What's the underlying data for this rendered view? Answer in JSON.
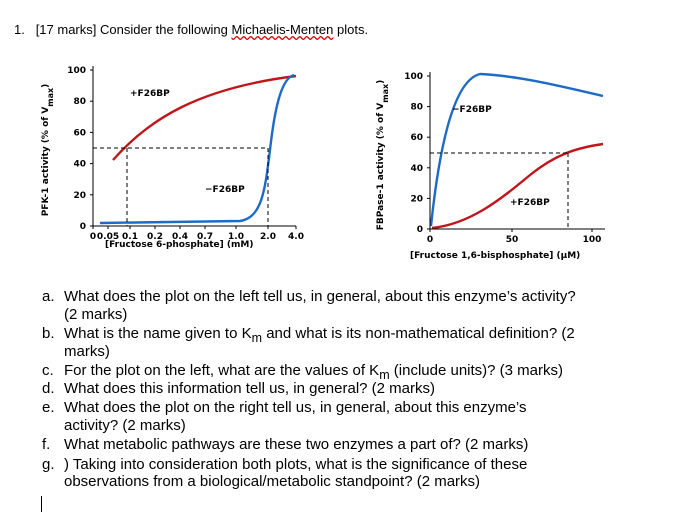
{
  "question": {
    "number": "1.",
    "text_before": "[17 marks] Consider the following ",
    "text_underlined": "Michaelis-Menten",
    "text_after": " plots."
  },
  "figures": [
    {
      "y_label": [
        "PFK-1 activity (% of V",
        "max",
        ")"
      ],
      "x_label": "[Fructose 6-phosphate] (mM)",
      "yticks": [
        "0",
        "20",
        "40",
        "60",
        "80",
        "100"
      ],
      "xticks": [
        "0",
        "0.05",
        "0.1",
        "0.2",
        "0.4",
        "0.7",
        "1.0",
        "2.0",
        "4.0"
      ],
      "curve_labels": [
        "+F26BP",
        "−F26BP"
      ]
    },
    {
      "y_label": [
        "FBPase-1 activity (% of V",
        "max",
        ")"
      ],
      "x_label": "[Fructose 1,6-bisphosphate] (µM)",
      "yticks": [
        "0",
        "20",
        "40",
        "60",
        "80",
        "100"
      ],
      "xticks": [
        "0",
        "50",
        "100"
      ],
      "curve_labels": [
        "−F26BP",
        "+F26BP"
      ]
    }
  ],
  "parts": [
    {
      "letter": "a.",
      "lines": [
        [
          "What does the plot on the left tell us, in general, about this enzyme’s activity?"
        ],
        [
          "(2 marks)"
        ]
      ]
    },
    {
      "letter": "b.",
      "lines": [
        [
          "What is the name given to K",
          "m",
          " and what is its non-mathematical definition? (2"
        ],
        [
          "marks)"
        ]
      ]
    },
    {
      "letter": "c.",
      "lines": [
        [
          "For the plot on the left, what are the values of K",
          "m",
          " (include units)? (3 marks)"
        ]
      ]
    },
    {
      "letter": "d.",
      "lines": [
        [
          "What does this information tell us, in general? (2 marks)"
        ]
      ]
    },
    {
      "letter": "e.",
      "lines": [
        [
          "What does the plot on the right tell us, in general, about this enzyme’s"
        ],
        [
          "activity? (2 marks)"
        ]
      ]
    },
    {
      "letter": "f.",
      "lines": [
        [
          "What metabolic pathways are these two enzymes a part of? (2 marks)"
        ]
      ]
    },
    {
      "letter": "g.",
      "lines": [
        [
          ") Taking into consideration both plots, what is the significance of these"
        ],
        [
          "observations from a biological/metabolic standpoint? (2 marks)"
        ]
      ]
    }
  ]
}
